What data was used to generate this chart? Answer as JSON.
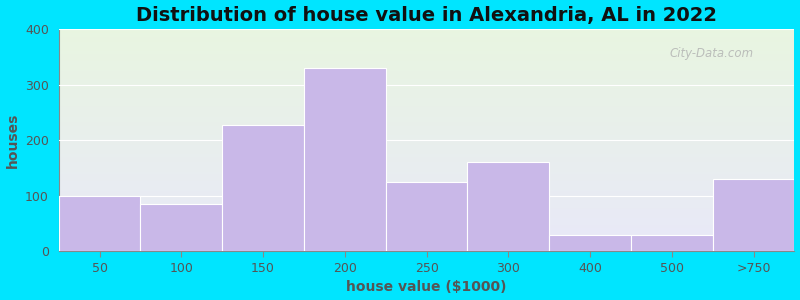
{
  "title": "Distribution of house value in Alexandria, AL in 2022",
  "xlabel": "house value ($1000)",
  "ylabel": "houses",
  "tick_labels": [
    "50",
    "100",
    "150",
    "200",
    "250",
    "300",
    "400",
    "500",
    ">750"
  ],
  "bar_heights": [
    100,
    85,
    228,
    330,
    125,
    160,
    30,
    30,
    130
  ],
  "bar_color": "#c9b8e8",
  "bar_edgecolor": "#ffffff",
  "ylim": [
    0,
    400
  ],
  "yticks": [
    0,
    100,
    200,
    300,
    400
  ],
  "background_outer": "#00e5ff",
  "bg_top_color": "#e8f5e0",
  "bg_bottom_color": "#e8e8f8",
  "title_fontsize": 14,
  "axis_label_fontsize": 10,
  "tick_fontsize": 9,
  "watermark_text": "City-Data.com",
  "bin_edges": [
    0,
    1,
    2,
    3,
    4,
    5,
    6,
    8,
    10,
    13
  ]
}
